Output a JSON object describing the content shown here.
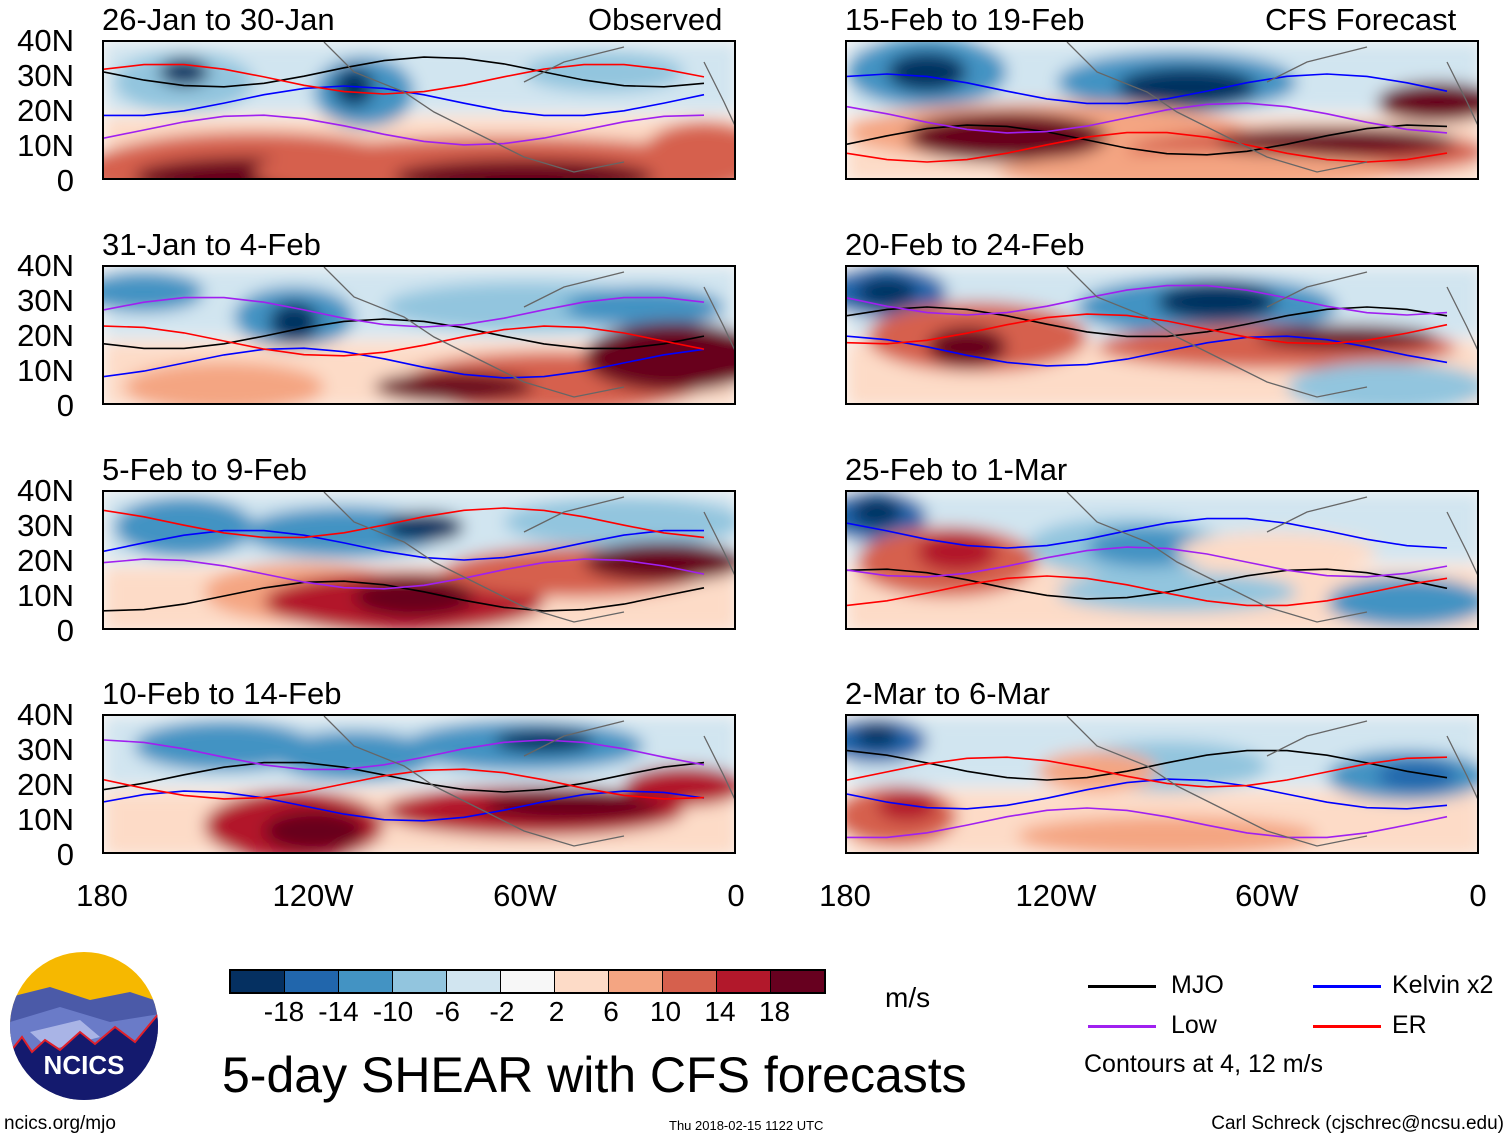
{
  "title": "5-day SHEAR with CFS forecasts",
  "left_header_label": "Observed",
  "right_header_label": "CFS Forecast",
  "chart_data": [
    {
      "type": "heatmap",
      "title": "26-Jan to 30-Jan",
      "source": "Observed"
    },
    {
      "type": "heatmap",
      "title": "31-Jan to 4-Feb",
      "source": "Observed"
    },
    {
      "type": "heatmap",
      "title": "5-Feb to 9-Feb",
      "source": "Observed"
    },
    {
      "type": "heatmap",
      "title": "10-Feb to 14-Feb",
      "source": "Observed"
    },
    {
      "type": "heatmap",
      "title": "15-Feb to 19-Feb",
      "source": "CFS Forecast"
    },
    {
      "type": "heatmap",
      "title": "20-Feb to 24-Feb",
      "source": "CFS Forecast"
    },
    {
      "type": "heatmap",
      "title": "25-Feb to 1-Mar",
      "source": "CFS Forecast"
    },
    {
      "type": "heatmap",
      "title": "2-Mar to 6-Mar",
      "source": "CFS Forecast"
    }
  ],
  "y_ticks": [
    "40N",
    "30N",
    "20N",
    "10N",
    "0"
  ],
  "x_ticks": [
    "180",
    "120W",
    "60W",
    "0"
  ],
  "colorbar": {
    "unit": "m/s",
    "labels": [
      "-18",
      "-14",
      "-10",
      "-6",
      "-2",
      "2",
      "6",
      "10",
      "14",
      "18"
    ],
    "colors": [
      "#053061",
      "#2166ac",
      "#4393c3",
      "#92c5de",
      "#d1e5f0",
      "#f7f7f7",
      "#fddbc7",
      "#f4a582",
      "#d6604d",
      "#b2182b",
      "#67001f"
    ]
  },
  "legend": {
    "items": [
      {
        "label": "MJO",
        "color": "#000000"
      },
      {
        "label": "Kelvin x2",
        "color": "#0000ff"
      },
      {
        "label": "Low",
        "color": "#a020f0"
      },
      {
        "label": "ER",
        "color": "#ff0000"
      }
    ],
    "note": "Contours at 4, 12 m/s"
  },
  "logo_text": "NCICS",
  "footer": {
    "url": "ncics.org/mjo",
    "timestamp": "Thu 2018-02-15 1122 UTC",
    "author": "Carl Schreck (cjschrec@ncsu.edu)"
  }
}
